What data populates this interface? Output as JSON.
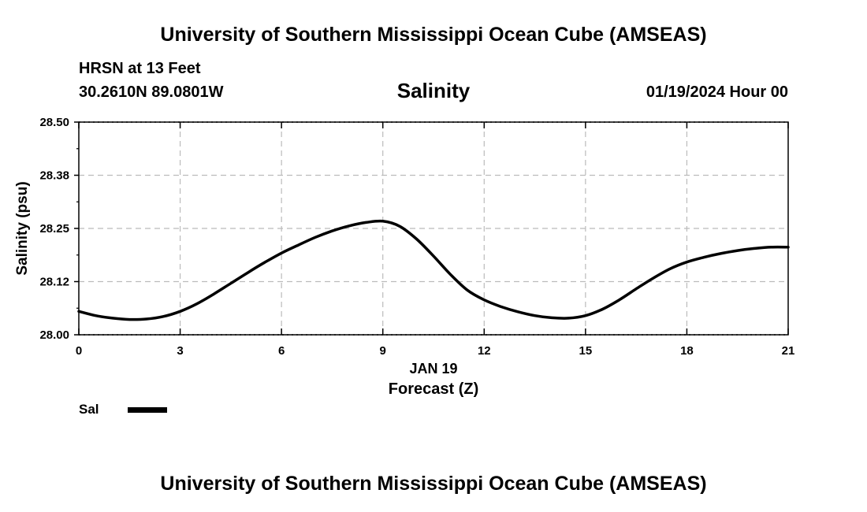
{
  "header": {
    "title": "University of Southern Mississippi Ocean Cube (AMSEAS)",
    "station": "HRSN at 13 Feet",
    "coords": "30.2610N  89.0801W",
    "subtitle": "Salinity",
    "datetime": "01/19/2024 Hour 00"
  },
  "footer": {
    "title": "University of Southern Mississippi Ocean Cube (AMSEAS)"
  },
  "legend": {
    "label": "Sal"
  },
  "colors": {
    "line": "#000000",
    "grid": "#bbbbbb"
  },
  "chart_data": {
    "type": "line",
    "title": "Salinity",
    "xlabel": "Forecast (Z)",
    "date_label": "JAN 19",
    "ylabel": "Salinity (psu)",
    "xlim": [
      0,
      21
    ],
    "ylim": [
      28.0,
      28.5
    ],
    "x_ticks": [
      0,
      3,
      6,
      9,
      12,
      15,
      18,
      21
    ],
    "x_tick_labels": [
      "0",
      "3",
      "6",
      "9",
      "12",
      "15",
      "18",
      "21"
    ],
    "y_ticks": [
      28.0,
      28.125,
      28.25,
      28.375,
      28.5
    ],
    "y_tick_labels": [
      "28.00",
      "28.12",
      "28.25",
      "28.38",
      "28.50"
    ],
    "grid": true,
    "series": [
      {
        "name": "Sal",
        "x": [
          0,
          0.5,
          1,
          1.5,
          2,
          2.5,
          3,
          3.5,
          4,
          4.5,
          5,
          5.5,
          6,
          6.5,
          7,
          7.5,
          8,
          8.5,
          9,
          9.5,
          10,
          10.5,
          11,
          11.5,
          12,
          12.5,
          13,
          13.5,
          14,
          14.5,
          15,
          15.5,
          16,
          16.5,
          17,
          17.5,
          18,
          18.5,
          19,
          19.5,
          20,
          20.5,
          21
        ],
        "values": [
          28.055,
          28.045,
          28.039,
          28.036,
          28.037,
          28.043,
          28.055,
          28.073,
          28.096,
          28.121,
          28.146,
          28.17,
          28.192,
          28.211,
          28.229,
          28.244,
          28.256,
          28.264,
          28.267,
          28.255,
          28.225,
          28.185,
          28.142,
          28.105,
          28.082,
          28.066,
          28.054,
          28.045,
          28.04,
          28.039,
          28.045,
          28.06,
          28.082,
          28.108,
          28.133,
          28.155,
          28.171,
          28.182,
          28.191,
          28.198,
          28.203,
          28.206,
          28.206
        ]
      }
    ]
  }
}
